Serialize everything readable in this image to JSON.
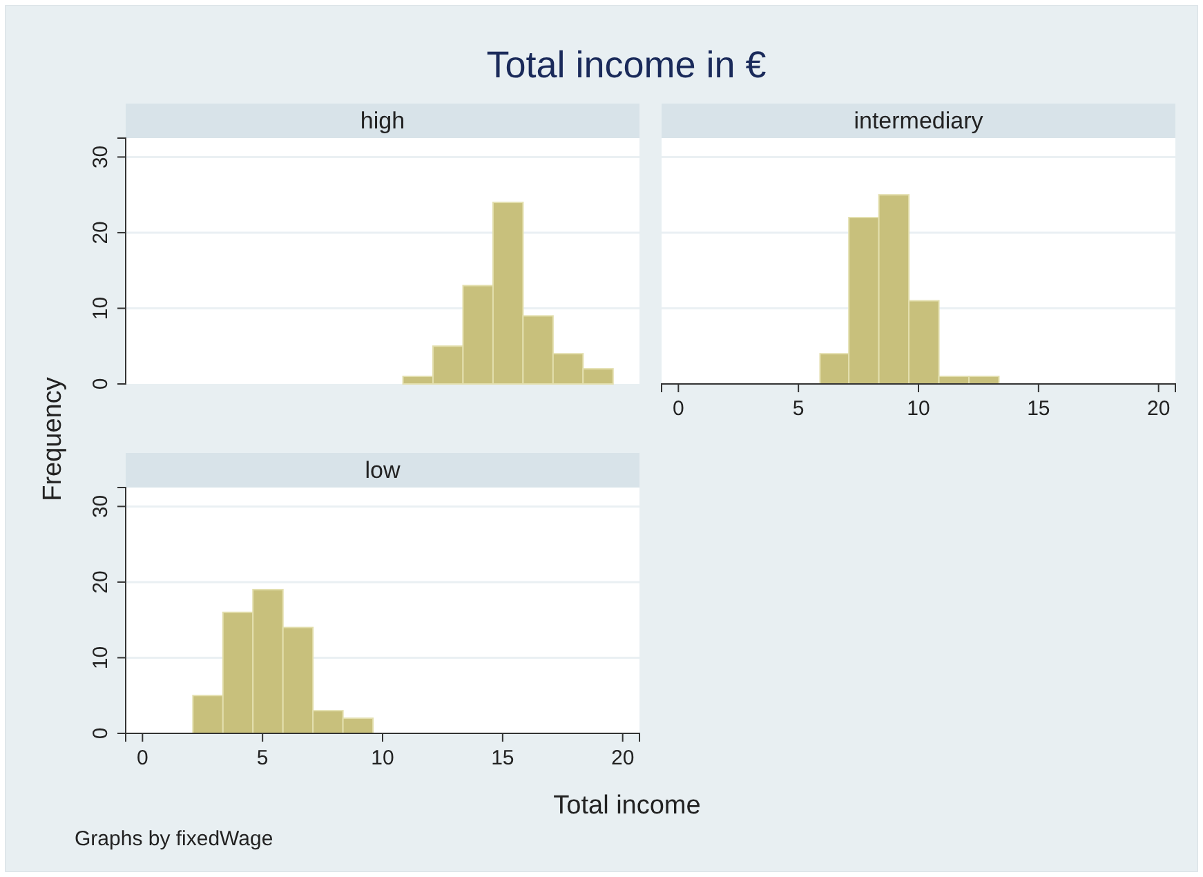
{
  "chart_data": [
    {
      "type": "histogram",
      "title": "Total income in €",
      "subtitle": "high",
      "ylabel": "Frequency",
      "bins": [
        10.85,
        12.1,
        13.35,
        14.6,
        15.85,
        17.1,
        18.35,
        19.6
      ],
      "values": [
        1,
        5,
        13,
        24,
        9,
        4,
        2
      ],
      "color": "#c8c07c",
      "xlim": [
        -0.7,
        20.7
      ],
      "ylim": [
        0,
        32.5
      ],
      "yticks": [
        0,
        10,
        20,
        30
      ],
      "grid": "y",
      "tick_labels": "y"
    },
    {
      "type": "histogram",
      "subtitle": "intermediary",
      "bins": [
        5.9,
        7.1,
        8.35,
        9.6,
        10.85,
        12.1,
        13.35
      ],
      "values": [
        4,
        22,
        25,
        11,
        1,
        1
      ],
      "color": "#c8c07c",
      "xlim": [
        -0.7,
        20.7
      ],
      "ylim": [
        0,
        32.5
      ],
      "xticks": [
        0,
        5,
        10,
        15,
        20
      ],
      "yticks": [
        0,
        10,
        20,
        30
      ],
      "grid": "y",
      "tick_labels": "x"
    },
    {
      "type": "histogram",
      "subtitle": "low",
      "xlabel": "Total income",
      "annotations": [
        "Graphs by fixedWage"
      ],
      "bins": [
        2.1,
        3.35,
        4.6,
        5.85,
        7.1,
        8.35,
        9.6
      ],
      "values": [
        5,
        16,
        19,
        14,
        3,
        2
      ],
      "color": "#c8c07c",
      "xlim": [
        -0.7,
        20.7
      ],
      "ylim": [
        0,
        32.5
      ],
      "xticks": [
        0,
        5,
        10,
        15,
        20
      ],
      "yticks": [
        0,
        10,
        20,
        30
      ],
      "grid": "y"
    }
  ]
}
